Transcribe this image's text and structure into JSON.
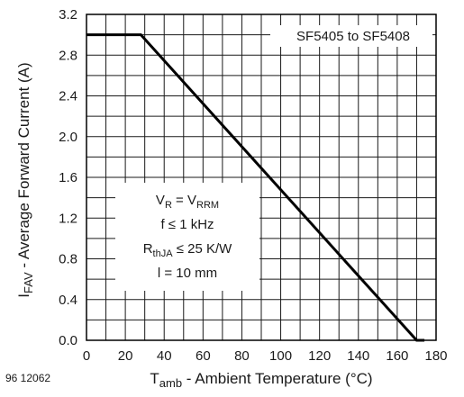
{
  "chart_data": {
    "type": "line",
    "series_label": "SF5405 to SF5408",
    "x": [
      0,
      28,
      170,
      174
    ],
    "series": [
      {
        "values": [
          3.0,
          3.0,
          0.0,
          0.0
        ]
      }
    ],
    "xlabel": {
      "main": "T",
      "sub": "amb",
      "rest": " - Ambient Temperature (°C)"
    },
    "ylabel": {
      "main": "I",
      "sub": "FAV",
      "rest": " - Average Forward Current (A)"
    },
    "xlim": [
      0,
      180
    ],
    "ylim": [
      0,
      3.2
    ],
    "xticks": [
      "0",
      "20",
      "40",
      "60",
      "80",
      "100",
      "120",
      "140",
      "160",
      "180"
    ],
    "yticks": [
      "0.0",
      "0.4",
      "0.8",
      "1.2",
      "1.6",
      "2.0",
      "2.4",
      "2.8",
      "3.2"
    ],
    "grid": true,
    "conditions": [
      {
        "parts": [
          {
            "t": "V"
          },
          {
            "t": "R",
            "sub": true
          },
          {
            "t": " = V"
          },
          {
            "t": "RRM",
            "sub": true
          }
        ]
      },
      {
        "parts": [
          {
            "t": "f ≤ 1 kHz"
          }
        ]
      },
      {
        "parts": [
          {
            "t": "R"
          },
          {
            "t": "thJA",
            "sub": true
          },
          {
            "t": " ≤ 25 K/W"
          }
        ]
      },
      {
        "parts": [
          {
            "t": "l = 10 mm"
          }
        ]
      }
    ],
    "figure_id": "96 12062",
    "colors": {
      "line": "#000000",
      "grid": "#1a1a1a",
      "frame": "#000000"
    }
  }
}
